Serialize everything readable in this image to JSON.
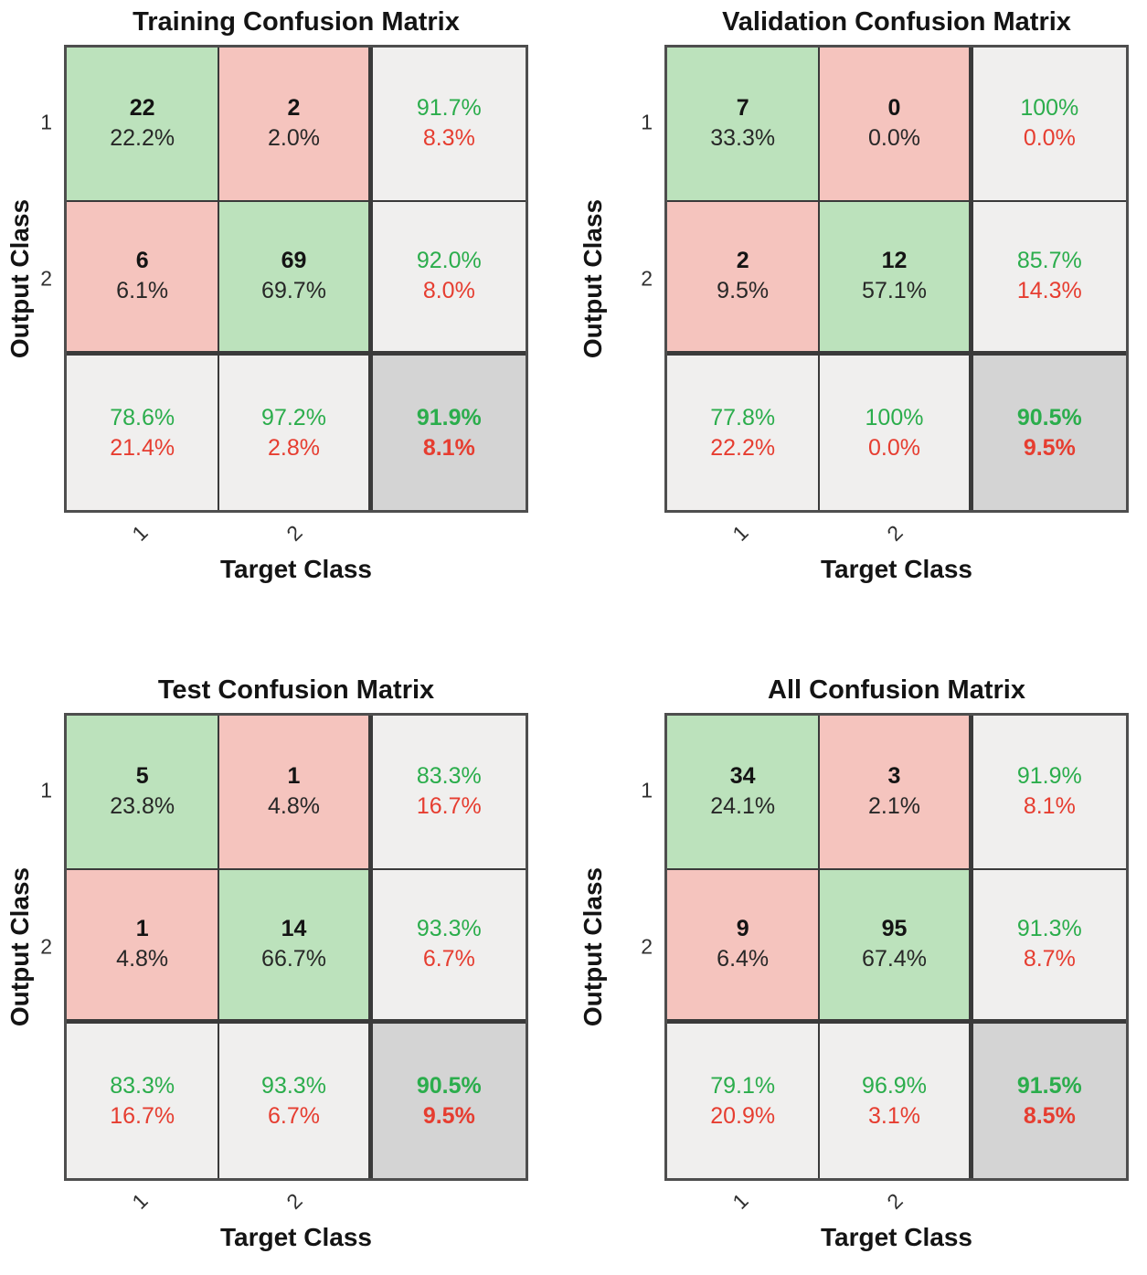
{
  "colors": {
    "cell_green": "#bce2bc",
    "cell_red": "#f5c4be",
    "cell_gray": "#f0efee",
    "cell_dark_gray": "#d4d4d4",
    "text_green": "#2bad4c",
    "text_red": "#e63d30",
    "grid_line": "#3a3a3a"
  },
  "chart_data": [
    {
      "type": "heatmap",
      "title": "Training Confusion Matrix",
      "xlabel": "Target Class",
      "ylabel": "Output Class",
      "classes": [
        "1",
        "2"
      ],
      "counts": [
        [
          22,
          2
        ],
        [
          6,
          69
        ]
      ],
      "count_pct": [
        [
          "22.2%",
          "2.0%"
        ],
        [
          "6.1%",
          "69.7%"
        ]
      ],
      "row_summary": [
        [
          "91.7%",
          "8.3%"
        ],
        [
          "92.0%",
          "8.0%"
        ]
      ],
      "col_summary": [
        [
          "78.6%",
          "21.4%"
        ],
        [
          "97.2%",
          "2.8%"
        ]
      ],
      "overall": [
        "91.9%",
        "8.1%"
      ]
    },
    {
      "type": "heatmap",
      "title": "Validation Confusion Matrix",
      "xlabel": "Target Class",
      "ylabel": "Output Class",
      "classes": [
        "1",
        "2"
      ],
      "counts": [
        [
          7,
          0
        ],
        [
          2,
          12
        ]
      ],
      "count_pct": [
        [
          "33.3%",
          "0.0%"
        ],
        [
          "9.5%",
          "57.1%"
        ]
      ],
      "row_summary": [
        [
          "100%",
          "0.0%"
        ],
        [
          "85.7%",
          "14.3%"
        ]
      ],
      "col_summary": [
        [
          "77.8%",
          "22.2%"
        ],
        [
          "100%",
          "0.0%"
        ]
      ],
      "overall": [
        "90.5%",
        "9.5%"
      ]
    },
    {
      "type": "heatmap",
      "title": "Test Confusion Matrix",
      "xlabel": "Target Class",
      "ylabel": "Output Class",
      "classes": [
        "1",
        "2"
      ],
      "counts": [
        [
          5,
          1
        ],
        [
          1,
          14
        ]
      ],
      "count_pct": [
        [
          "23.8%",
          "4.8%"
        ],
        [
          "4.8%",
          "66.7%"
        ]
      ],
      "row_summary": [
        [
          "83.3%",
          "16.7%"
        ],
        [
          "93.3%",
          "6.7%"
        ]
      ],
      "col_summary": [
        [
          "83.3%",
          "16.7%"
        ],
        [
          "93.3%",
          "6.7%"
        ]
      ],
      "overall": [
        "90.5%",
        "9.5%"
      ]
    },
    {
      "type": "heatmap",
      "title": "All Confusion Matrix",
      "xlabel": "Target Class",
      "ylabel": "Output Class",
      "classes": [
        "1",
        "2"
      ],
      "counts": [
        [
          34,
          3
        ],
        [
          9,
          95
        ]
      ],
      "count_pct": [
        [
          "24.1%",
          "2.1%"
        ],
        [
          "6.4%",
          "67.4%"
        ]
      ],
      "row_summary": [
        [
          "91.9%",
          "8.1%"
        ],
        [
          "91.3%",
          "8.7%"
        ]
      ],
      "col_summary": [
        [
          "79.1%",
          "20.9%"
        ],
        [
          "96.9%",
          "3.1%"
        ]
      ],
      "overall": [
        "91.5%",
        "8.5%"
      ]
    }
  ]
}
